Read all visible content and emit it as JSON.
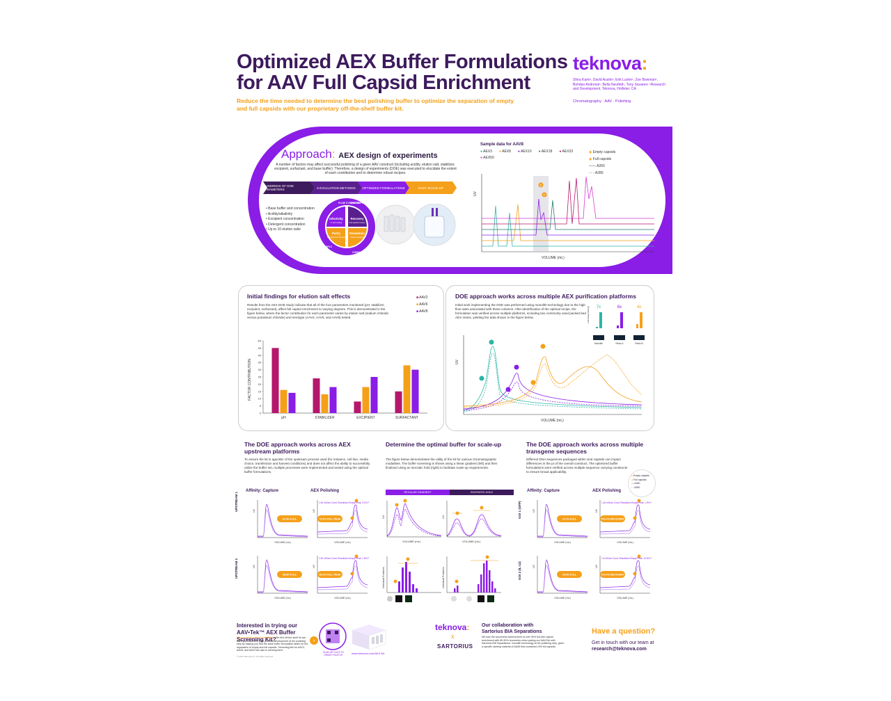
{
  "poster": {
    "title": "Optimized AEX Buffer Formulations for AAV Full Capsid Enrichment",
    "subtitle": "Reduce the time needed to determine the best polishing buffer to optimize the separation of empty and full capsids with our proprietary off-the-shelf buffer kit.",
    "logo_word": "teknova",
    "logo_colon": ":",
    "authors": "Shira Kami¹, David Austin¹, Erik Lustre¹, Zoe Bowman¹, Bohdan Andreiuk¹, Bella Neufeld¹, Tony Savares¹ ¹Research and Development, Teknova, Hollister, CA",
    "tags": "Chromatography · AAV · Polishing"
  },
  "colors": {
    "purple": "#8a1de6",
    "dark_purple": "#3d1a5c",
    "orange": "#f5a01a",
    "magenta": "#b5176c",
    "teal": "#2bb5a7"
  },
  "approach": {
    "title": "Approach",
    "colon": ":",
    "subtitle": "AEX design of experiments",
    "text": "A number of factors may affect successful polishing of a given AAV construct (including acidity, elution salt, stabilizer, excipient, surfactant, and base buffer). Therefore, a design of experiments (DOE) was executed to elucidate the extent of each contribution and to determine robust recipes.",
    "steps": [
      "HUNDREDS OF DOE PARAMETERS",
      "6 EVALUATION METHODS",
      "OPTIMIZED FORMULATIONS",
      "EASY SCALE-UP"
    ],
    "bullets": [
      "• Base buffer and concentration",
      "• Acidity/alkalinity",
      "• Excipient concentration",
      "• Detergent concentration",
      "• Up to 10 elution salts"
    ],
    "wheel": {
      "outer": [
        "FLOW CYTOMETRY",
        "UPCR/DDPCR",
        "HPLC",
        "CONDUCTIVITY"
      ],
      "quadrants": [
        {
          "title": "Infectivity",
          "sub": "In vitro testing"
        },
        {
          "title": "Recovery",
          "sub": "Full capsid recovery"
        },
        {
          "title": "Purity",
          "sub": "Full capsid enrichment"
        },
        {
          "title": "Resolution",
          "sub": "Peak separation"
        }
      ]
    },
    "sample": {
      "title": "Sample data for AAV8",
      "legend": [
        "AEX3",
        "AEX8",
        "AEX10",
        "AEX18",
        "AEX33",
        "AEX50"
      ],
      "legend_colors": [
        "#2bb5a7",
        "#f5a01a",
        "#8a1de6",
        "#1f7a6e",
        "#b5176c",
        "#d63ad6"
      ],
      "markers": [
        "Empty capsids",
        "Full capsids"
      ],
      "marker_letters": [
        "E",
        "F"
      ],
      "a260": "A260",
      "a280": "A280",
      "xlabel": "VOLUME (mL)",
      "ylabel": "UV"
    }
  },
  "findings": {
    "title": "Initial findings for elution salt effects",
    "text": "Results from the AEX DOE study indicate that all of the four parameters monitored (pH, stabilizer, excipient, surfactant), affect full capsid enrichment to varying degrees. This is demonstrated in the figure below, where the factor contribution for each parameter varies by elution salt (sodium chloride versus potassium chloride) and serotype (AAV2, AAV6, and AAV8) tested.",
    "ylabel": "FACTOR CONTRIBUTION"
  },
  "chart_data": {
    "type": "bar",
    "categories": [
      "pH",
      "STABILIZER",
      "EXCIPIENT",
      "SURFACTANT"
    ],
    "series": [
      {
        "name": "AAV2",
        "color": "#b5176c",
        "values": [
          45,
          24,
          8,
          15
        ]
      },
      {
        "name": "AAV6",
        "color": "#f5a01a",
        "values": [
          16,
          13,
          18,
          33
        ]
      },
      {
        "name": "AAV8",
        "color": "#8a1de6",
        "values": [
          14,
          18,
          25,
          30
        ]
      }
    ],
    "ylim": [
      0,
      50
    ],
    "yticks": [
      "0",
      "5",
      "10",
      "15",
      "20",
      "25",
      "30",
      "35",
      "40",
      "45",
      "50"
    ],
    "ylabel": "FACTOR CONTRIBUTION",
    "legend": "top-right"
  },
  "platforms": {
    "title": "DOE approach works across multiple AEX purification platforms",
    "text": "Initial work implementing the DOE was performed using monolith technology due to the high flow rates associated with these columns. After identification of the optimal recipe, the formulation was verified across multiple platforms, including two commonly used packed bed AEX resins, yielding the data shown in the figure below.",
    "fold": [
      "7x",
      "6x",
      "4x"
    ],
    "fold_labels": [
      "Monolith",
      "Resin A",
      "Resin B"
    ],
    "fold_ylabel": "Fold change full/empty",
    "xlabel": "VOLUME (mL)",
    "ylabel": "UV"
  },
  "upstream": {
    "title": "The DOE approach works across AEX upstream platforms",
    "text": "To ensure the kit is agnostic of the upstream process used (for instance, cell line, media choice, transfection and harvest conditions) and does not affect the ability to successfully utilize the buffer set, multiple processes were implemented and tested using the optimal buffer formulations.",
    "col1": "Affinity: Capture",
    "col2": "AEX Polishing",
    "row1": "UPSTREAM 1",
    "row2": "UPSTREAM 2",
    "pills": [
      "21.8% FULL",
      "79.4% FULL PEAK",
      "48.8% FULL",
      "88.2% FULL PEAK"
    ],
    "notes": [
      "1.54 mS/cm Cond. Resolution Empty Peak: 3.2% Full 80.8% Recovery",
      "1.52 mS/cm Cond. Resolution Empty Peak: 1.6% Full 90.3% Recovery"
    ],
    "xlabel": "VOLUME (mL)",
    "ylabel": "UV"
  },
  "scaleup": {
    "title": "Determine the optimal buffer for scale-up",
    "text": "The figure below demonstrates the utility of the kit for various chromatographic modalities. The buffer screening is shown using a linear gradient (left) and then finalized using an isocratic hold (right) to facilitate scale-up requirements.",
    "tabs": [
      "REGULAR GRADIENT",
      "ISOCRATIC HOLD"
    ],
    "xlabel": "VOLUME (mL)",
    "ylabel": "UV",
    "frac_ylabel": "Individual Fractions"
  },
  "transgene": {
    "title": "The DOE approach works across multiple transgene sequences",
    "text": "Different DNA sequences packaged within viral capsids can impact differences in the pI of the overall construct. The optimized buffer formulations were verified across multiple sequence carrying constructs to ensure broad applicability.",
    "col1": "Affinity: Capture",
    "col2": "AEX Polishing",
    "row1": "GOI 1 (GFP)",
    "row2": "GOI 2 (IL-12)",
    "pills": [
      "12.1% FULL",
      "79% FS RECOVERY",
      "15.6% FULL",
      "71% FS RECOVERY"
    ],
    "notes": [
      "1.26 mS/cm Cond. Resolution Empty Peak: 1.9% Full Full Peak: 48.4% Full",
      "1.6 mS/cm Cond. Resolution Empty Peak: 12.6% Full Full Peak: 91.8% Full"
    ],
    "legend": [
      "Empty capsids",
      "Full capsids",
      "A260",
      "A280"
    ],
    "xlabel": "VOLUME (mL)",
    "ylabel": "UV"
  },
  "footer": {
    "cta_title": "Interested in trying our AAV•Tek™ AEX Buffer Screening Kit?",
    "cta_orange": "Now available for AAV2 and AAV8.",
    "cta_text": "We find off-the-shelf kit can save you months in your process development at the polishing step by helping you find the ideal buffer formulation faster for the separation of empty and full capsids. Screening kits for AAV2, AAV8, and AAV9 are also in development.",
    "copyright": "© 2023 Teknova Inc. All rights reserved.",
    "qr_text": "SCAN OR CLICK TO ORDER YOUR KIT",
    "url": "www.teknova.com/AEX-Kit",
    "collab_logo1": "teknova",
    "collab_x": "x",
    "collab_logo2": "SARTORIUS",
    "collab_title": "Our collaboration with Sartorius BIA Separations",
    "collab_text": "We saw the successful achievement of over 90% full AAV capsid enrichment with 80-90% recoveries when pairing our AAV•Tek with Sartorius BIA Separations' monolith technology at the polishing step, given a specific starting material of AAV8 that contained 10% full capsids.",
    "question": "Have a question?",
    "contact": "Get in touch with our team at",
    "email": "research@teknova.com"
  }
}
